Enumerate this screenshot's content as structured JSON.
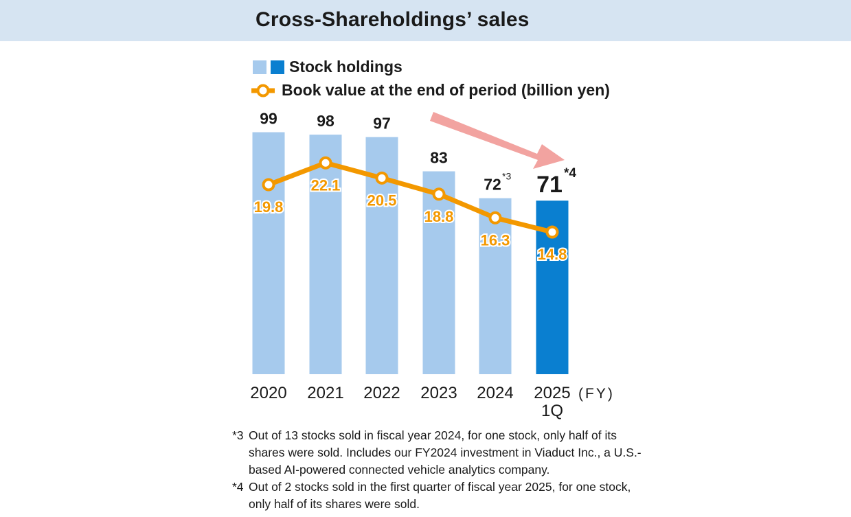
{
  "header": {
    "title": "Cross-Shareholdings’ sales"
  },
  "legend": {
    "bars_label": "Stock holdings",
    "line_label": "Book value at the end of period (billion yen)"
  },
  "colors": {
    "bar_light": "#a6caed",
    "bar_dark": "#0a7fd0",
    "line": "#f39800",
    "arrow": "#f2a3a0",
    "header_bg": "#d6e4f2"
  },
  "chart_data": {
    "type": "bar+line",
    "title": "Cross-Shareholdings’ sales",
    "categories": [
      "2020",
      "2021",
      "2022",
      "2023",
      "2024",
      "2025"
    ],
    "category_sublabels": [
      "",
      "",
      "",
      "",
      "",
      "1Q"
    ],
    "axis_unit": "(FY)",
    "series": [
      {
        "name": "Stock holdings",
        "type": "bar",
        "values": [
          99,
          98,
          97,
          83,
          72,
          71
        ],
        "value_labels": [
          "99",
          "98",
          "97",
          "83",
          "72",
          "71"
        ],
        "superscripts": [
          "",
          "",
          "",
          "",
          "*3",
          "*4"
        ],
        "highlight_index": 5
      },
      {
        "name": "Book value at the end of period (billion yen)",
        "type": "line",
        "values": [
          19.8,
          22.1,
          20.5,
          18.8,
          16.3,
          14.8
        ],
        "value_labels": [
          "19.8",
          "22.1",
          "20.5",
          "18.8",
          "16.3",
          "14.8"
        ]
      }
    ],
    "annotations": [
      "downward trend arrow"
    ]
  },
  "notes": [
    {
      "mark": "*3",
      "text": "Out of 13 stocks sold in fiscal year 2024, for one stock, only half of its shares were sold. Includes our FY2024 investment in Viaduct Inc., a U.S.-based AI-powered connected vehicle analytics company."
    },
    {
      "mark": "*4",
      "text": "Out of 2 stocks sold in the first quarter of fiscal year 2025, for one stock, only half of its shares were sold."
    }
  ]
}
